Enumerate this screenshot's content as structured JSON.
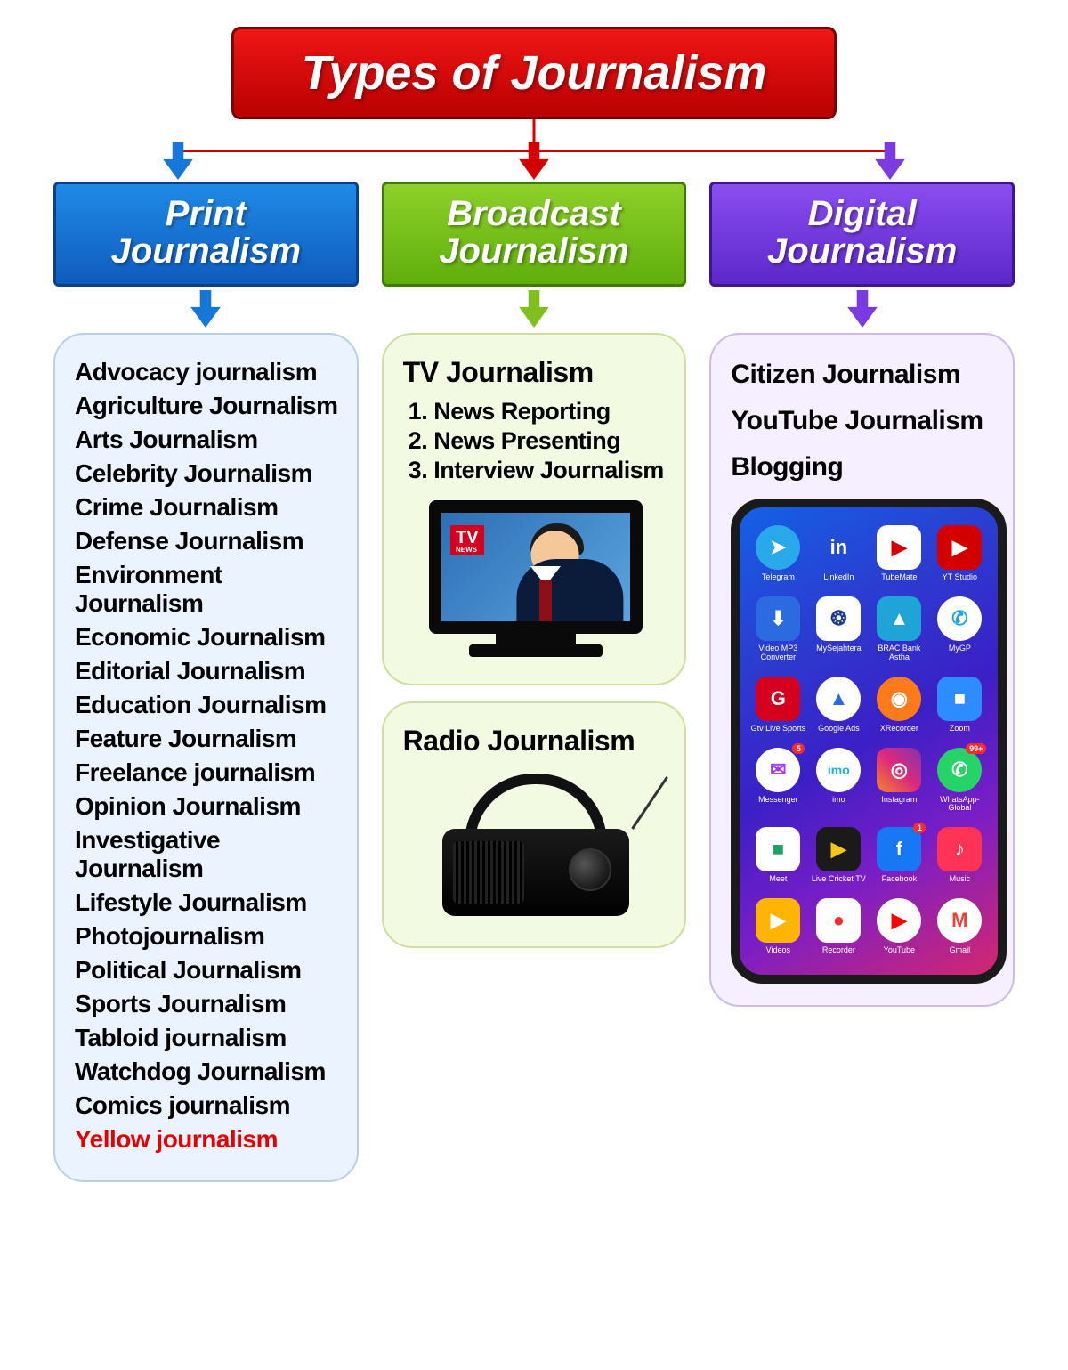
{
  "root": {
    "title": "Types of Journalism",
    "bg_gradient_top": "#f01616",
    "bg_gradient_bottom": "#b90000",
    "border_color": "#7a0000",
    "text_color": "#ffffff",
    "font_size": 54
  },
  "connector_color": "#d40000",
  "arrow_colors": {
    "print": "#1677d9",
    "broadcast": "#7fbf1f",
    "digital": "#7a3ce0",
    "root": "#d40000"
  },
  "categories": [
    {
      "key": "print",
      "title_line1": "Print",
      "title_line2": "Journalism",
      "bg_gradient_top": "#1f8ae6",
      "bg_gradient_bottom": "#0f5bbd",
      "border_color": "#0a3f8a",
      "panel_bg": "#eaf3ff",
      "panel_border": "#b9cfe6",
      "arrow_color": "#1677d9",
      "items": [
        {
          "text": "Advocacy journalism",
          "highlight": false
        },
        {
          "text": "Agriculture Journalism",
          "highlight": false
        },
        {
          "text": "Arts Journalism",
          "highlight": false
        },
        {
          "text": "Celebrity Journalism",
          "highlight": false
        },
        {
          "text": "Crime Journalism",
          "highlight": false
        },
        {
          "text": "Defense Journalism",
          "highlight": false
        },
        {
          "text": "Environment Journalism",
          "highlight": false
        },
        {
          "text": "Economic Journalism",
          "highlight": false
        },
        {
          "text": "Editorial Journalism",
          "highlight": false
        },
        {
          "text": "Education Journalism",
          "highlight": false
        },
        {
          "text": "Feature Journalism",
          "highlight": false
        },
        {
          "text": "Freelance journalism",
          "highlight": false
        },
        {
          "text": "Opinion Journalism",
          "highlight": false
        },
        {
          "text": "Investigative Journalism",
          "highlight": false
        },
        {
          "text": "Lifestyle Journalism",
          "highlight": false
        },
        {
          "text": "Photojournalism",
          "highlight": false
        },
        {
          "text": "Political Journalism",
          "highlight": false
        },
        {
          "text": "Sports Journalism",
          "highlight": false
        },
        {
          "text": "Tabloid journalism",
          "highlight": false
        },
        {
          "text": "Watchdog Journalism",
          "highlight": false
        },
        {
          "text": "Comics journalism",
          "highlight": false
        },
        {
          "text": "Yellow journalism",
          "highlight": true
        }
      ],
      "highlight_color": "#e60000"
    },
    {
      "key": "broadcast",
      "title_line1": "Broadcast",
      "title_line2": "Journalism",
      "bg_gradient_top": "#8ed02a",
      "bg_gradient_bottom": "#5fae0c",
      "border_color": "#3f7a00",
      "panel_bg": "#f3fae2",
      "panel_border": "#cddf9e",
      "arrow_color": "#7fbf1f",
      "tv": {
        "heading": "TV Journalism",
        "items": [
          "1. News Reporting",
          "2. News Presenting",
          "3. Interview Journalism"
        ],
        "badge_text": "TV",
        "badge_sub": "NEWS",
        "badge_bg": "#d4001d"
      },
      "radio": {
        "heading": "Radio Journalism"
      }
    },
    {
      "key": "digital",
      "title_line1": "Digital",
      "title_line2": "Journalism",
      "bg_gradient_top": "#8a4df0",
      "bg_gradient_bottom": "#5c27c9",
      "border_color": "#3e1690",
      "panel_bg": "#f5efff",
      "panel_border": "#cdb9ea",
      "arrow_color": "#7a3ce0",
      "items": [
        "Citizen Journalism",
        "YouTube Journalism",
        "Blogging"
      ],
      "phone": {
        "frame_color": "#1a1a1a",
        "bg_gradient": [
          "#1461e6",
          "#2a3ed1",
          "#3b1fc6",
          "#7a1ec6",
          "#d4276f"
        ],
        "apps": [
          {
            "label": "Telegram",
            "bg": "#29a9ea",
            "glyph": "➤",
            "shape": "circle"
          },
          {
            "label": "LinkedIn",
            "bg": "transparent",
            "glyph": "in",
            "shape": "text",
            "color": "#ffffff"
          },
          {
            "label": "TubeMate",
            "bg": "#ffffff",
            "glyph": "▶",
            "shape": "rect",
            "color": "#d40000",
            "badge": ""
          },
          {
            "label": "YT Studio",
            "bg": "#d40000",
            "glyph": "▶",
            "shape": "rect"
          },
          {
            "label": "Video MP3 Converter",
            "bg": "#2b6bdf",
            "glyph": "⬇",
            "shape": "rect"
          },
          {
            "label": "MySejahtera",
            "bg": "#ffffff",
            "glyph": "❂",
            "shape": "rect",
            "color": "#1a3e8a"
          },
          {
            "label": "BRAC Bank Astha",
            "bg": "#1fa4d8",
            "glyph": "▲",
            "shape": "rect"
          },
          {
            "label": "MyGP",
            "bg": "#ffffff",
            "glyph": "✆",
            "shape": "circle",
            "color": "#19a7df"
          },
          {
            "label": "Gtv Live Sports",
            "bg": "#d4001d",
            "glyph": "G",
            "shape": "rect"
          },
          {
            "label": "Google Ads",
            "bg": "#ffffff",
            "glyph": "▲",
            "shape": "circle",
            "color": "#2b6bdf"
          },
          {
            "label": "XRecorder",
            "bg": "#ff7a1a",
            "glyph": "◉",
            "shape": "circle"
          },
          {
            "label": "Zoom",
            "bg": "#2d8cff",
            "glyph": "■",
            "shape": "rect"
          },
          {
            "label": "Messenger",
            "bg": "#ffffff",
            "glyph": "✉",
            "shape": "circle",
            "color": "#a835ff",
            "badge": "5"
          },
          {
            "label": "imo",
            "bg": "#ffffff",
            "glyph": "imo",
            "shape": "circle",
            "color": "#18b2d6",
            "small": true
          },
          {
            "label": "Instagram",
            "bg": "linear-gradient(45deg,#f58529,#dd2a7b,#8134af)",
            "glyph": "◎",
            "shape": "rect"
          },
          {
            "label": "WhatsApp-Global",
            "bg": "#25d366",
            "glyph": "✆",
            "shape": "circle",
            "badge": "99+"
          },
          {
            "label": "Meet",
            "bg": "#ffffff",
            "glyph": "■",
            "shape": "rect",
            "color": "#1aa260"
          },
          {
            "label": "Live Cricket TV",
            "bg": "#1a1a1a",
            "glyph": "▶",
            "shape": "rect",
            "color": "#f5c518"
          },
          {
            "label": "Facebook",
            "bg": "#1877f2",
            "glyph": "f",
            "shape": "rect",
            "badge": "1"
          },
          {
            "label": "Music",
            "bg": "#ff3355",
            "glyph": "♪",
            "shape": "rect"
          },
          {
            "label": "Videos",
            "bg": "#ffb400",
            "glyph": "▶",
            "shape": "rect",
            "color": "#ffffff"
          },
          {
            "label": "Recorder",
            "bg": "#ffffff",
            "glyph": "●",
            "shape": "rect",
            "color": "#ff2a2a"
          },
          {
            "label": "YouTube",
            "bg": "#ffffff",
            "glyph": "▶",
            "shape": "circle",
            "color": "#ff0000"
          },
          {
            "label": "Gmail",
            "bg": "#ffffff",
            "glyph": "M",
            "shape": "circle",
            "color": "#ea4335"
          }
        ]
      }
    }
  ]
}
